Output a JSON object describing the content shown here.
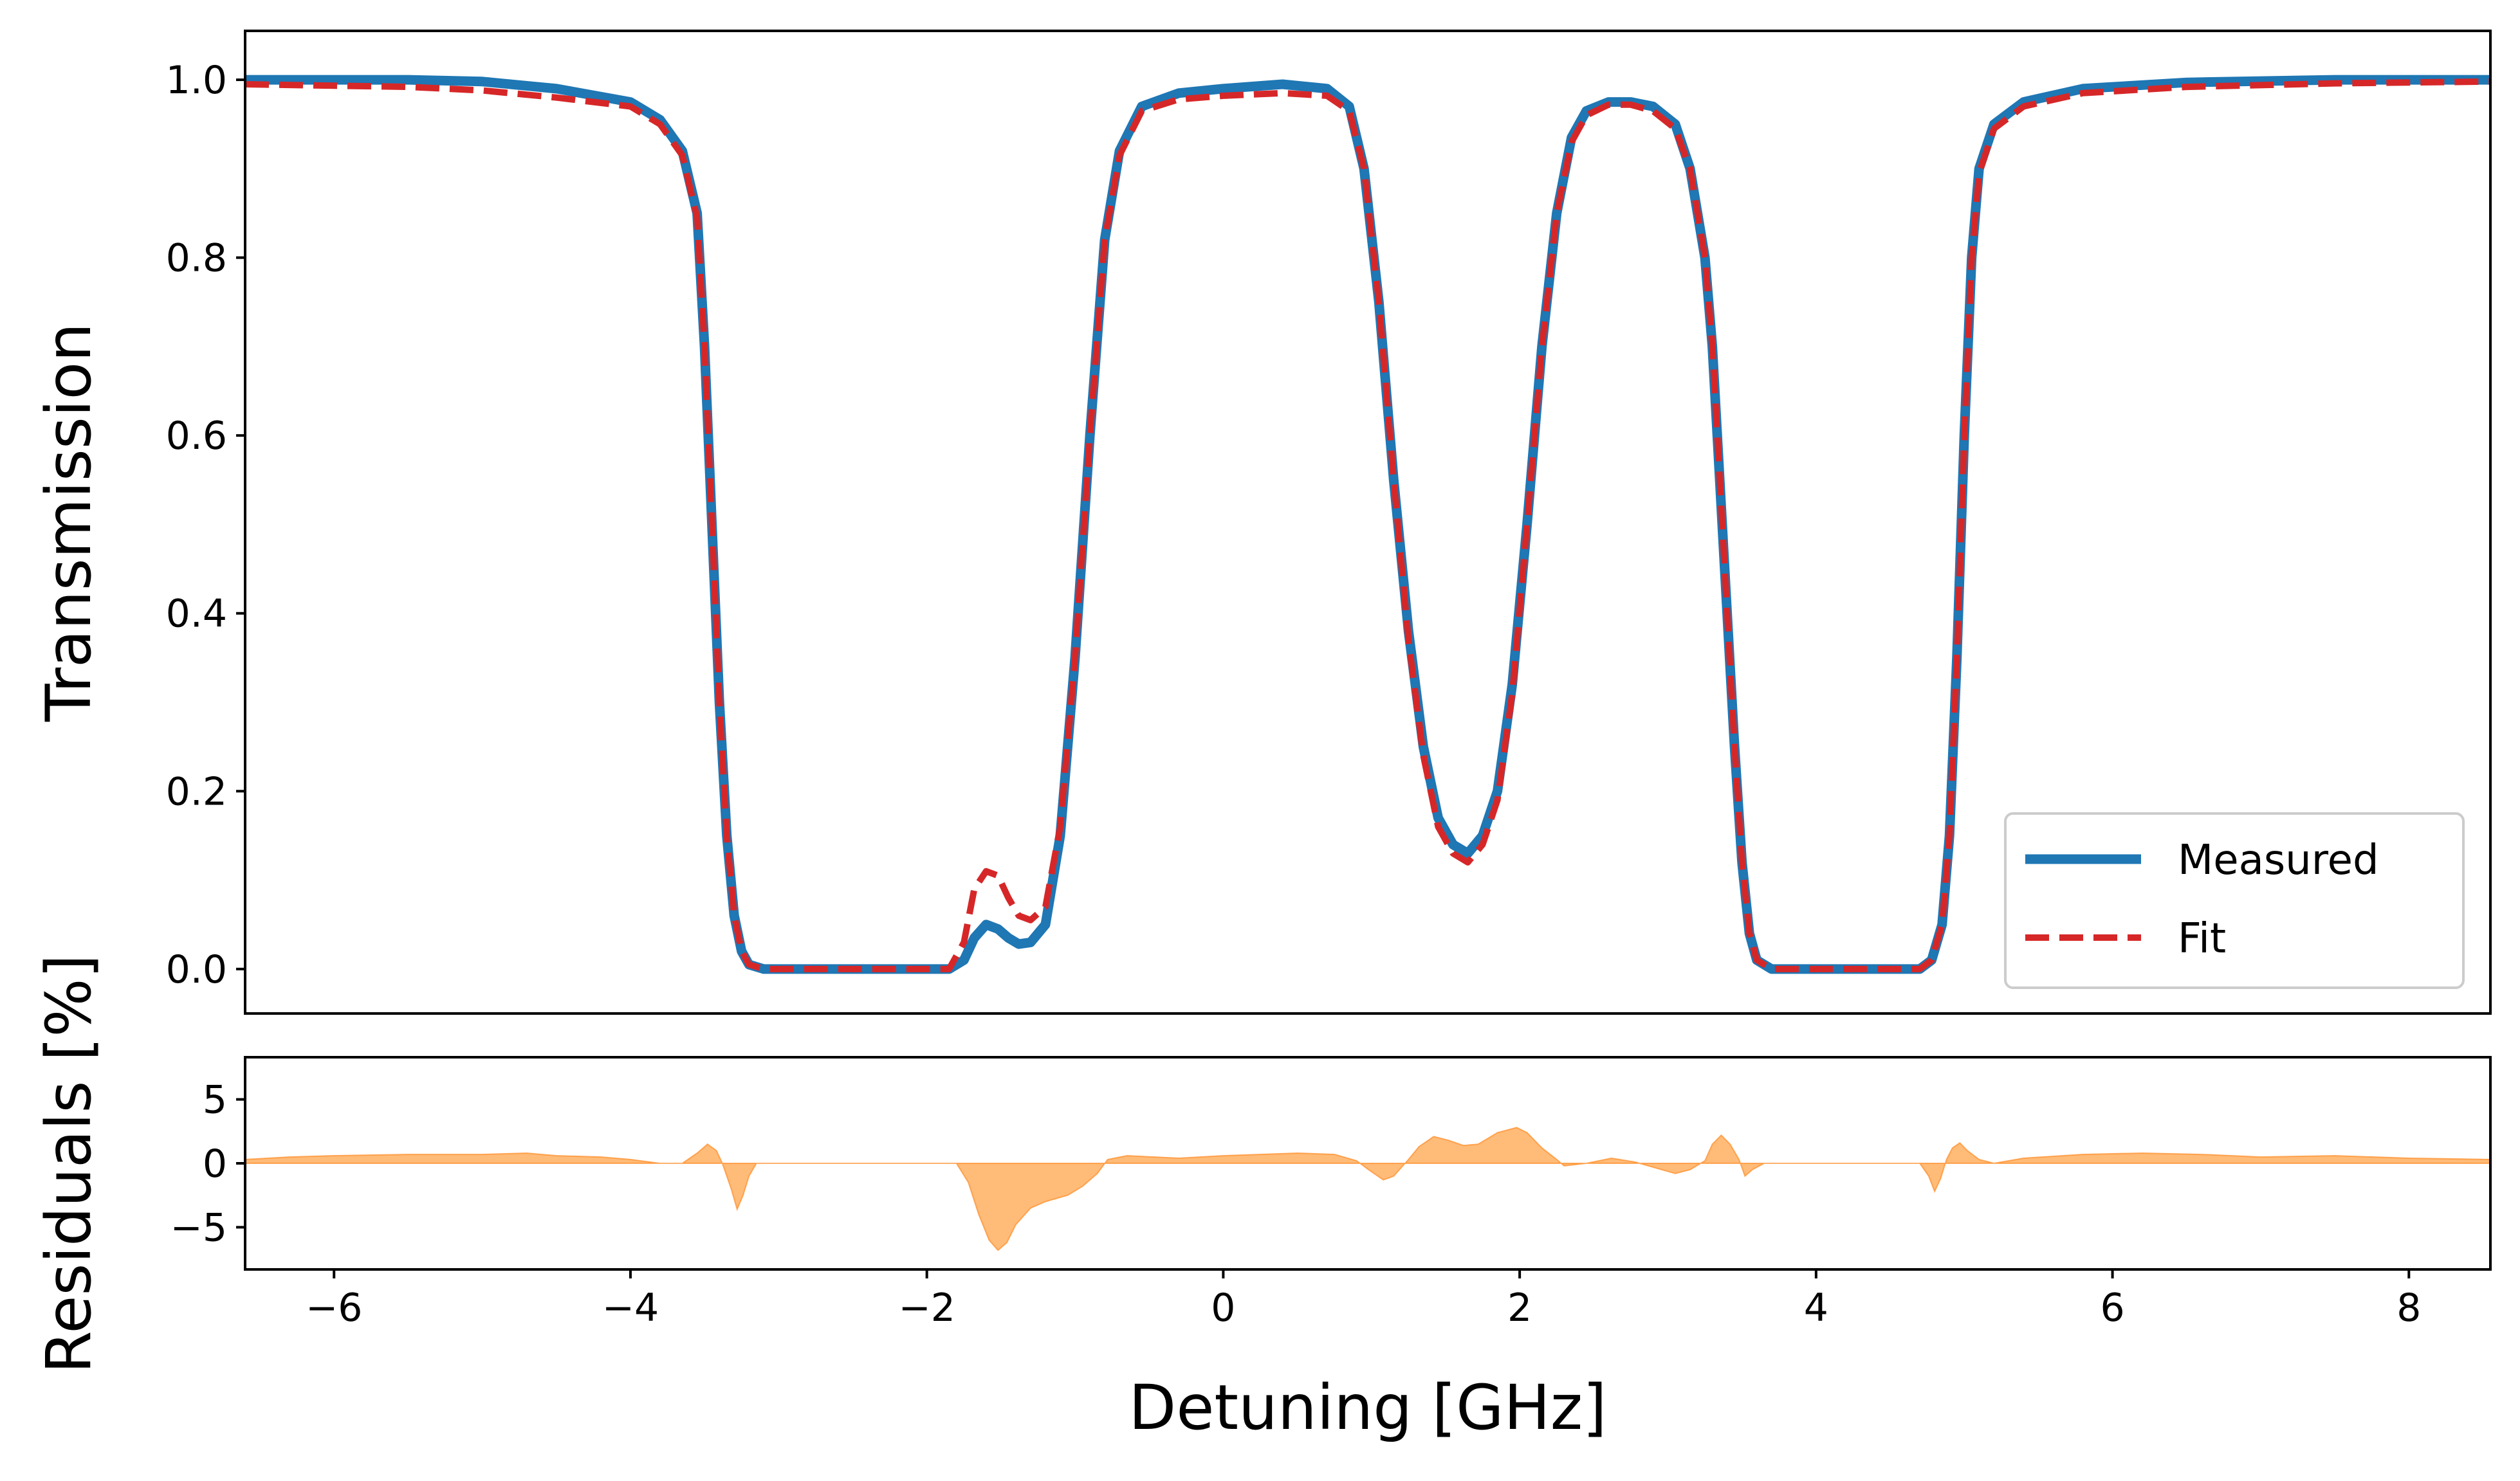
{
  "chart_data": [
    {
      "type": "line",
      "title": "",
      "xlabel": "",
      "ylabel": "Transmission",
      "xlim": [
        -6.6,
        8.55
      ],
      "ylim": [
        -0.05,
        1.055
      ],
      "xticks": [
        -6,
        -4,
        -2,
        0,
        2,
        4,
        6,
        8
      ],
      "yticks": [
        0.0,
        0.2,
        0.4,
        0.6,
        0.8,
        1.0
      ],
      "ytick_labels": [
        "0.0",
        "0.2",
        "0.4",
        "0.6",
        "0.8",
        "1.0"
      ],
      "legend_position": "lower-right",
      "grid": false,
      "series": [
        {
          "name": "Measured",
          "style": "solid",
          "color": "#1f77b4",
          "points": [
            [
              -6.6,
              1.0
            ],
            [
              -5.5,
              1.0
            ],
            [
              -5.0,
              0.998
            ],
            [
              -4.5,
              0.99
            ],
            [
              -4.0,
              0.975
            ],
            [
              -3.8,
              0.955
            ],
            [
              -3.65,
              0.92
            ],
            [
              -3.55,
              0.85
            ],
            [
              -3.5,
              0.7
            ],
            [
              -3.45,
              0.5
            ],
            [
              -3.4,
              0.3
            ],
            [
              -3.35,
              0.15
            ],
            [
              -3.3,
              0.06
            ],
            [
              -3.25,
              0.02
            ],
            [
              -3.2,
              0.005
            ],
            [
              -3.1,
              0.0
            ],
            [
              -2.0,
              0.0
            ],
            [
              -1.85,
              0.0
            ],
            [
              -1.75,
              0.01
            ],
            [
              -1.68,
              0.035
            ],
            [
              -1.6,
              0.05
            ],
            [
              -1.52,
              0.045
            ],
            [
              -1.45,
              0.035
            ],
            [
              -1.38,
              0.028
            ],
            [
              -1.3,
              0.03
            ],
            [
              -1.2,
              0.05
            ],
            [
              -1.1,
              0.15
            ],
            [
              -1.0,
              0.35
            ],
            [
              -0.9,
              0.6
            ],
            [
              -0.8,
              0.82
            ],
            [
              -0.7,
              0.92
            ],
            [
              -0.55,
              0.97
            ],
            [
              -0.3,
              0.985
            ],
            [
              0.0,
              0.99
            ],
            [
              0.4,
              0.995
            ],
            [
              0.7,
              0.99
            ],
            [
              0.85,
              0.97
            ],
            [
              0.95,
              0.9
            ],
            [
              1.05,
              0.75
            ],
            [
              1.15,
              0.55
            ],
            [
              1.25,
              0.38
            ],
            [
              1.35,
              0.25
            ],
            [
              1.45,
              0.17
            ],
            [
              1.55,
              0.14
            ],
            [
              1.65,
              0.13
            ],
            [
              1.75,
              0.15
            ],
            [
              1.85,
              0.2
            ],
            [
              1.95,
              0.32
            ],
            [
              2.05,
              0.5
            ],
            [
              2.15,
              0.7
            ],
            [
              2.25,
              0.85
            ],
            [
              2.35,
              0.935
            ],
            [
              2.45,
              0.965
            ],
            [
              2.6,
              0.975
            ],
            [
              2.75,
              0.975
            ],
            [
              2.9,
              0.97
            ],
            [
              3.05,
              0.95
            ],
            [
              3.15,
              0.9
            ],
            [
              3.25,
              0.8
            ],
            [
              3.3,
              0.7
            ],
            [
              3.35,
              0.55
            ],
            [
              3.4,
              0.4
            ],
            [
              3.45,
              0.25
            ],
            [
              3.5,
              0.12
            ],
            [
              3.55,
              0.04
            ],
            [
              3.6,
              0.01
            ],
            [
              3.7,
              0.0
            ],
            [
              4.7,
              0.0
            ],
            [
              4.78,
              0.01
            ],
            [
              4.85,
              0.05
            ],
            [
              4.9,
              0.15
            ],
            [
              4.95,
              0.35
            ],
            [
              5.0,
              0.6
            ],
            [
              5.05,
              0.8
            ],
            [
              5.1,
              0.9
            ],
            [
              5.2,
              0.95
            ],
            [
              5.4,
              0.975
            ],
            [
              5.8,
              0.99
            ],
            [
              6.5,
              0.997
            ],
            [
              7.5,
              1.0
            ],
            [
              8.55,
              1.0
            ]
          ]
        },
        {
          "name": "Fit",
          "style": "dashed",
          "color": "#d62728",
          "points": [
            [
              -6.6,
              0.995
            ],
            [
              -5.5,
              0.992
            ],
            [
              -5.0,
              0.988
            ],
            [
              -4.5,
              0.98
            ],
            [
              -4.0,
              0.97
            ],
            [
              -3.8,
              0.95
            ],
            [
              -3.65,
              0.915
            ],
            [
              -3.55,
              0.845
            ],
            [
              -3.5,
              0.7
            ],
            [
              -3.45,
              0.5
            ],
            [
              -3.4,
              0.3
            ],
            [
              -3.35,
              0.15
            ],
            [
              -3.3,
              0.06
            ],
            [
              -3.25,
              0.02
            ],
            [
              -3.2,
              0.005
            ],
            [
              -3.1,
              0.0
            ],
            [
              -2.0,
              0.0
            ],
            [
              -1.85,
              0.0
            ],
            [
              -1.75,
              0.03
            ],
            [
              -1.68,
              0.09
            ],
            [
              -1.6,
              0.11
            ],
            [
              -1.52,
              0.105
            ],
            [
              -1.45,
              0.08
            ],
            [
              -1.38,
              0.06
            ],
            [
              -1.3,
              0.055
            ],
            [
              -1.2,
              0.07
            ],
            [
              -1.1,
              0.16
            ],
            [
              -1.0,
              0.35
            ],
            [
              -0.9,
              0.6
            ],
            [
              -0.8,
              0.82
            ],
            [
              -0.7,
              0.915
            ],
            [
              -0.55,
              0.965
            ],
            [
              -0.3,
              0.978
            ],
            [
              0.0,
              0.982
            ],
            [
              0.4,
              0.985
            ],
            [
              0.7,
              0.982
            ],
            [
              0.85,
              0.965
            ],
            [
              0.95,
              0.9
            ],
            [
              1.05,
              0.75
            ],
            [
              1.15,
              0.55
            ],
            [
              1.25,
              0.37
            ],
            [
              1.35,
              0.24
            ],
            [
              1.45,
              0.16
            ],
            [
              1.55,
              0.13
            ],
            [
              1.65,
              0.12
            ],
            [
              1.75,
              0.14
            ],
            [
              1.85,
              0.19
            ],
            [
              1.95,
              0.31
            ],
            [
              2.05,
              0.5
            ],
            [
              2.15,
              0.7
            ],
            [
              2.25,
              0.85
            ],
            [
              2.35,
              0.93
            ],
            [
              2.45,
              0.96
            ],
            [
              2.6,
              0.972
            ],
            [
              2.75,
              0.972
            ],
            [
              2.9,
              0.965
            ],
            [
              3.05,
              0.945
            ],
            [
              3.15,
              0.9
            ],
            [
              3.25,
              0.8
            ],
            [
              3.3,
              0.7
            ],
            [
              3.35,
              0.55
            ],
            [
              3.4,
              0.4
            ],
            [
              3.45,
              0.25
            ],
            [
              3.5,
              0.12
            ],
            [
              3.55,
              0.04
            ],
            [
              3.6,
              0.01
            ],
            [
              3.7,
              0.0
            ],
            [
              4.7,
              0.0
            ],
            [
              4.78,
              0.01
            ],
            [
              4.85,
              0.05
            ],
            [
              4.9,
              0.15
            ],
            [
              4.95,
              0.35
            ],
            [
              5.0,
              0.6
            ],
            [
              5.05,
              0.8
            ],
            [
              5.1,
              0.895
            ],
            [
              5.2,
              0.945
            ],
            [
              5.4,
              0.97
            ],
            [
              5.8,
              0.985
            ],
            [
              6.5,
              0.992
            ],
            [
              7.5,
              0.996
            ],
            [
              8.55,
              0.998
            ]
          ]
        }
      ]
    },
    {
      "type": "area",
      "title": "",
      "xlabel": "Detuning [GHz]",
      "ylabel": "Residuals [%]",
      "xlim": [
        -6.6,
        8.55
      ],
      "ylim": [
        -8.3,
        8.3
      ],
      "xticks": [
        -6,
        -4,
        -2,
        0,
        2,
        4,
        6,
        8
      ],
      "xtick_labels": [
        "−6",
        "−4",
        "−2",
        "0",
        "2",
        "4",
        "6",
        "8"
      ],
      "yticks": [
        -5,
        0,
        5
      ],
      "ytick_labels": [
        "−5",
        "0",
        "5"
      ],
      "grid": false,
      "series": [
        {
          "color": "#ffbb78",
          "edge_color": "#ff7f0e",
          "points": [
            [
              -6.6,
              0.3
            ],
            [
              -6.3,
              0.5
            ],
            [
              -6.0,
              0.6
            ],
            [
              -5.5,
              0.7
            ],
            [
              -5.0,
              0.7
            ],
            [
              -4.7,
              0.8
            ],
            [
              -4.5,
              0.6
            ],
            [
              -4.2,
              0.5
            ],
            [
              -4.0,
              0.3
            ],
            [
              -3.8,
              0.0
            ],
            [
              -3.65,
              0.0
            ],
            [
              -3.55,
              0.8
            ],
            [
              -3.48,
              1.5
            ],
            [
              -3.42,
              1.0
            ],
            [
              -3.38,
              0.0
            ],
            [
              -3.32,
              -2.0
            ],
            [
              -3.28,
              -3.6
            ],
            [
              -3.24,
              -2.5
            ],
            [
              -3.2,
              -1.0
            ],
            [
              -3.15,
              0.0
            ],
            [
              -1.8,
              0.0
            ],
            [
              -1.72,
              -1.5
            ],
            [
              -1.65,
              -4.0
            ],
            [
              -1.58,
              -6.0
            ],
            [
              -1.52,
              -6.8
            ],
            [
              -1.46,
              -6.2
            ],
            [
              -1.4,
              -4.8
            ],
            [
              -1.3,
              -3.5
            ],
            [
              -1.2,
              -3.0
            ],
            [
              -1.05,
              -2.5
            ],
            [
              -0.95,
              -1.8
            ],
            [
              -0.85,
              -0.8
            ],
            [
              -0.78,
              0.3
            ],
            [
              -0.65,
              0.6
            ],
            [
              -0.3,
              0.4
            ],
            [
              0.0,
              0.6
            ],
            [
              0.5,
              0.8
            ],
            [
              0.75,
              0.7
            ],
            [
              0.9,
              0.2
            ],
            [
              0.98,
              -0.5
            ],
            [
              1.08,
              -1.3
            ],
            [
              1.15,
              -1.0
            ],
            [
              1.25,
              0.3
            ],
            [
              1.32,
              1.3
            ],
            [
              1.42,
              2.1
            ],
            [
              1.52,
              1.8
            ],
            [
              1.62,
              1.4
            ],
            [
              1.72,
              1.5
            ],
            [
              1.85,
              2.4
            ],
            [
              1.98,
              2.8
            ],
            [
              2.05,
              2.4
            ],
            [
              2.15,
              1.2
            ],
            [
              2.25,
              0.3
            ],
            [
              2.3,
              -0.2
            ],
            [
              2.45,
              0.0
            ],
            [
              2.62,
              0.4
            ],
            [
              2.78,
              0.1
            ],
            [
              2.9,
              -0.3
            ],
            [
              3.05,
              -0.8
            ],
            [
              3.15,
              -0.5
            ],
            [
              3.25,
              0.2
            ],
            [
              3.3,
              1.5
            ],
            [
              3.36,
              2.2
            ],
            [
              3.42,
              1.5
            ],
            [
              3.48,
              0.3
            ],
            [
              3.52,
              -1.0
            ],
            [
              3.57,
              -0.5
            ],
            [
              3.65,
              0.0
            ],
            [
              4.7,
              0.0
            ],
            [
              4.76,
              -1.0
            ],
            [
              4.8,
              -2.2
            ],
            [
              4.84,
              -1.2
            ],
            [
              4.88,
              0.3
            ],
            [
              4.92,
              1.2
            ],
            [
              4.97,
              1.6
            ],
            [
              5.02,
              1.0
            ],
            [
              5.1,
              0.3
            ],
            [
              5.2,
              0.0
            ],
            [
              5.4,
              0.4
            ],
            [
              5.8,
              0.7
            ],
            [
              6.2,
              0.8
            ],
            [
              6.6,
              0.7
            ],
            [
              7.0,
              0.5
            ],
            [
              7.5,
              0.6
            ],
            [
              8.0,
              0.4
            ],
            [
              8.55,
              0.3
            ]
          ]
        }
      ]
    }
  ]
}
